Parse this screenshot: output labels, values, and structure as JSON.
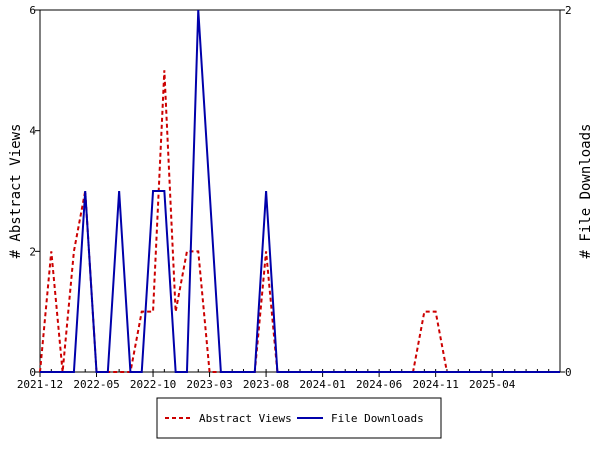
{
  "chart_data": {
    "type": "line",
    "title": "",
    "ylabel": "# Abstract Views",
    "y2label": "# File Downloads",
    "ylim": [
      0,
      6
    ],
    "y2lim": [
      0,
      2
    ],
    "yticks": [
      0,
      2,
      4,
      6
    ],
    "y2ticks": [
      0,
      2
    ],
    "xlim": [
      "2021-12",
      "2025-10"
    ],
    "xticks": [
      "2021-12",
      "2022-05",
      "2022-10",
      "2023-03",
      "2023-08",
      "2024-01",
      "2024-06",
      "2024-11",
      "2025-04"
    ],
    "x": [
      "2021-12",
      "2022-01",
      "2022-02",
      "2022-03",
      "2022-04",
      "2022-05",
      "2022-06",
      "2022-07",
      "2022-08",
      "2022-09",
      "2022-10",
      "2022-11",
      "2022-12",
      "2023-01",
      "2023-02",
      "2023-03",
      "2023-04",
      "2023-05",
      "2023-06",
      "2023-07",
      "2023-08",
      "2023-09",
      "2023-10",
      "2023-11",
      "2023-12",
      "2024-01",
      "2024-02",
      "2024-03",
      "2024-04",
      "2024-05",
      "2024-06",
      "2024-07",
      "2024-08",
      "2024-09",
      "2024-10",
      "2024-11",
      "2024-12",
      "2025-01",
      "2025-02",
      "2025-03",
      "2025-04",
      "2025-05",
      "2025-06",
      "2025-07",
      "2025-08",
      "2025-09",
      "2025-10"
    ],
    "series": [
      {
        "name": "Abstract Views",
        "axis": "left",
        "color": "#cc0000",
        "style": "dashed",
        "values": [
          0,
          2,
          0,
          2,
          3,
          0,
          0,
          0,
          0,
          1,
          1,
          5,
          1,
          2,
          2,
          0,
          0,
          0,
          0,
          0,
          2,
          0,
          0,
          0,
          0,
          0,
          0,
          0,
          0,
          0,
          0,
          0,
          0,
          0,
          1,
          1,
          0,
          0,
          0,
          0,
          0,
          0,
          0,
          0,
          0,
          0,
          0
        ]
      },
      {
        "name": "File Downloads",
        "axis": "right",
        "color": "#0000aa",
        "style": "solid",
        "values": [
          0,
          0,
          0,
          0,
          1,
          0,
          0,
          1,
          0,
          0,
          1,
          1,
          0,
          0,
          2,
          1,
          0,
          0,
          0,
          0,
          1,
          0,
          0,
          0,
          0,
          0,
          0,
          0,
          0,
          0,
          0,
          0,
          0,
          0,
          0,
          0,
          0,
          0,
          0,
          0,
          0,
          0,
          0,
          0,
          0,
          0,
          0
        ]
      }
    ],
    "grid": false,
    "legend_position": "bottom-center"
  }
}
